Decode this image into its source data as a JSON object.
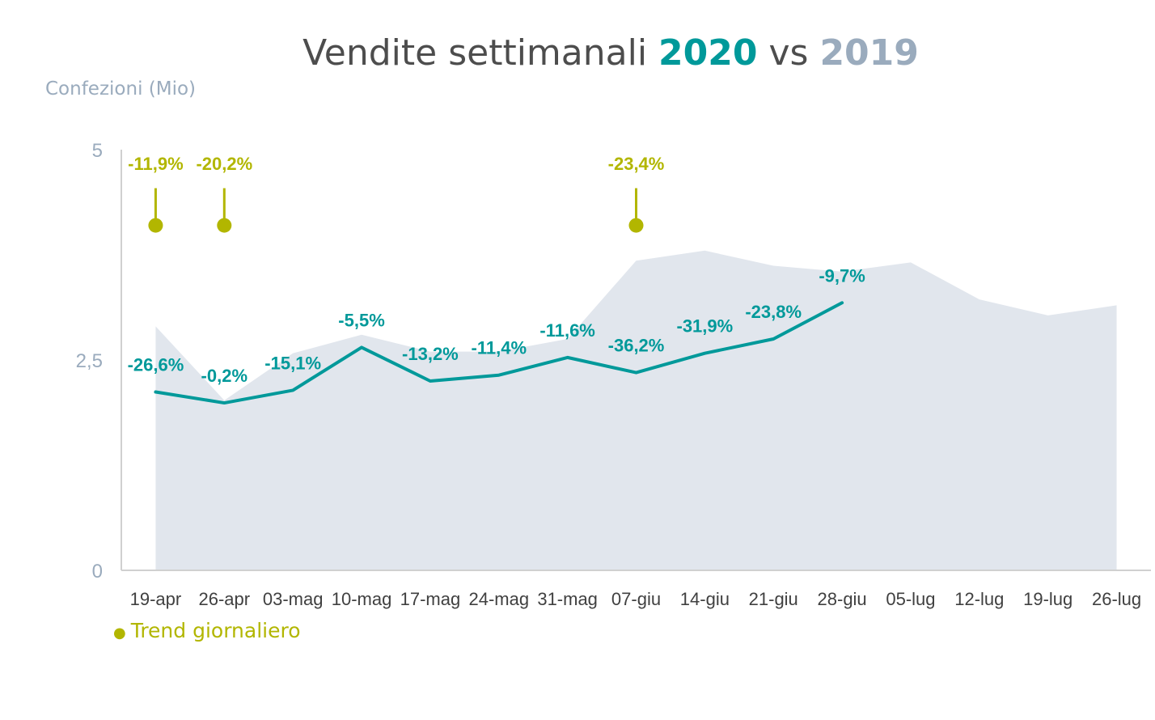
{
  "title": {
    "main": "Vendite settimanali ",
    "y2020": "2020",
    "vs": " vs ",
    "y2019": "2019"
  },
  "ylabel": "Confezioni (Mio)",
  "legend": {
    "label": "Trend giornaliero"
  },
  "colors": {
    "teal": "#00999a",
    "olive": "#b2b600",
    "area": "#e1e6ed",
    "axis": "#d0d0d0",
    "tick": "#9aabbd"
  },
  "chart_data": {
    "type": "line",
    "categories": [
      "19-apr",
      "26-apr",
      "03-mag",
      "10-mag",
      "17-mag",
      "24-mag",
      "31-mag",
      "07-giu",
      "14-giu",
      "21-giu",
      "28-giu",
      "05-lug",
      "12-lug",
      "19-lug",
      "26-lug"
    ],
    "yticks": [
      "0",
      "2,5",
      "5"
    ],
    "ytick_values": [
      0,
      2.5,
      5
    ],
    "ylim": [
      0,
      5
    ],
    "series": [
      {
        "name": "2020",
        "kind": "line",
        "values": [
          2.12,
          1.99,
          2.14,
          2.65,
          2.25,
          2.32,
          2.53,
          2.35,
          2.58,
          2.75,
          3.18,
          null,
          null,
          null,
          null
        ],
        "labels": [
          "-26,6%",
          "-0,2%",
          "-15,1%",
          "-5,5%",
          "-13,2%",
          "-11,4%",
          "-11,6%",
          "-36,2%",
          "-31,9%",
          "-23,8%",
          "-9,7%",
          null,
          null,
          null,
          null
        ]
      },
      {
        "name": "2019",
        "kind": "area",
        "values": [
          2.9,
          2.02,
          2.58,
          2.8,
          2.6,
          2.6,
          2.75,
          3.68,
          3.8,
          3.62,
          3.55,
          3.66,
          3.22,
          3.03,
          3.15
        ]
      }
    ],
    "annotations": [
      {
        "category": "19-apr",
        "label": "-11,9%",
        "y": 4.1
      },
      {
        "category": "26-apr",
        "label": "-20,2%",
        "y": 4.1
      },
      {
        "category": "07-giu",
        "label": "-23,4%",
        "y": 4.1
      }
    ]
  }
}
